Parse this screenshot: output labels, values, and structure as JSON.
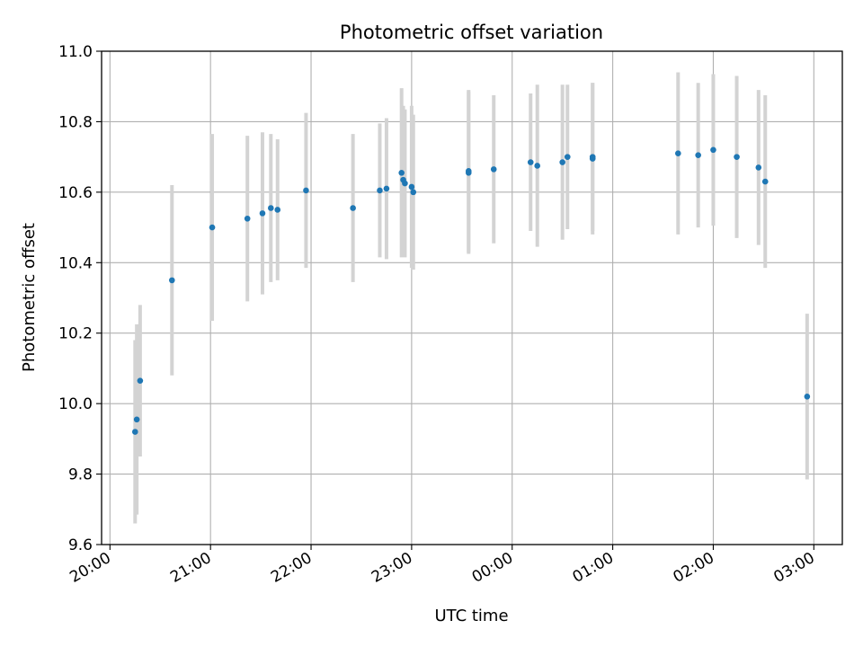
{
  "chart_data": {
    "type": "scatter",
    "title": "Photometric offset variation",
    "xlabel": "UTC time",
    "ylabel": "Photometric offset",
    "x_ticks": [
      "20:00",
      "21:00",
      "22:00",
      "23:00",
      "00:00",
      "01:00",
      "02:00",
      "03:00"
    ],
    "y_ticks": [
      "9.6",
      "9.8",
      "10.0",
      "10.2",
      "10.4",
      "10.6",
      "10.8",
      "11.0"
    ],
    "ylim": [
      9.6,
      11.0
    ],
    "xlim": [
      "19:55",
      "03:17"
    ],
    "grid": true,
    "colors": {
      "point": "#1f77b4",
      "errorbar": "#d3d3d3",
      "grid": "#b0b0b0"
    },
    "points": [
      {
        "time": "20:15",
        "y": 9.92,
        "err": 0.26
      },
      {
        "time": "20:16",
        "y": 9.955,
        "err": 0.27
      },
      {
        "time": "20:18",
        "y": 10.065,
        "err": 0.215
      },
      {
        "time": "20:37",
        "y": 10.35,
        "err": 0.27
      },
      {
        "time": "21:01",
        "y": 10.5,
        "err": 0.265
      },
      {
        "time": "21:22",
        "y": 10.525,
        "err": 0.235
      },
      {
        "time": "21:31",
        "y": 10.54,
        "err": 0.23
      },
      {
        "time": "21:36",
        "y": 10.555,
        "err": 0.21
      },
      {
        "time": "21:40",
        "y": 10.55,
        "err": 0.2
      },
      {
        "time": "21:57",
        "y": 10.605,
        "err": 0.22
      },
      {
        "time": "22:25",
        "y": 10.555,
        "err": 0.21
      },
      {
        "time": "22:41",
        "y": 10.605,
        "err": 0.19
      },
      {
        "time": "22:45",
        "y": 10.61,
        "err": 0.2
      },
      {
        "time": "22:54",
        "y": 10.655,
        "err": 0.24
      },
      {
        "time": "22:55",
        "y": 10.635,
        "err": 0.21
      },
      {
        "time": "22:56",
        "y": 10.625,
        "err": 0.21
      },
      {
        "time": "23:00",
        "y": 10.615,
        "err": 0.23
      },
      {
        "time": "23:01",
        "y": 10.6,
        "err": 0.22
      },
      {
        "time": "23:34",
        "y": 10.655,
        "err": 0.23
      },
      {
        "time": "23:34",
        "y": 10.66,
        "err": 0.23
      },
      {
        "time": "23:49",
        "y": 10.665,
        "err": 0.21
      },
      {
        "time": "00:11",
        "y": 10.685,
        "err": 0.195
      },
      {
        "time": "00:15",
        "y": 10.675,
        "err": 0.23
      },
      {
        "time": "00:30",
        "y": 10.685,
        "err": 0.22
      },
      {
        "time": "00:33",
        "y": 10.7,
        "err": 0.205
      },
      {
        "time": "00:48",
        "y": 10.695,
        "err": 0.215
      },
      {
        "time": "00:48",
        "y": 10.7,
        "err": 0.21
      },
      {
        "time": "01:39",
        "y": 10.71,
        "err": 0.23
      },
      {
        "time": "01:51",
        "y": 10.705,
        "err": 0.205
      },
      {
        "time": "02:00",
        "y": 10.72,
        "err": 0.215
      },
      {
        "time": "02:14",
        "y": 10.7,
        "err": 0.23
      },
      {
        "time": "02:27",
        "y": 10.67,
        "err": 0.22
      },
      {
        "time": "02:31",
        "y": 10.63,
        "err": 0.245
      },
      {
        "time": "02:56",
        "y": 10.02,
        "err": 0.235
      }
    ]
  }
}
